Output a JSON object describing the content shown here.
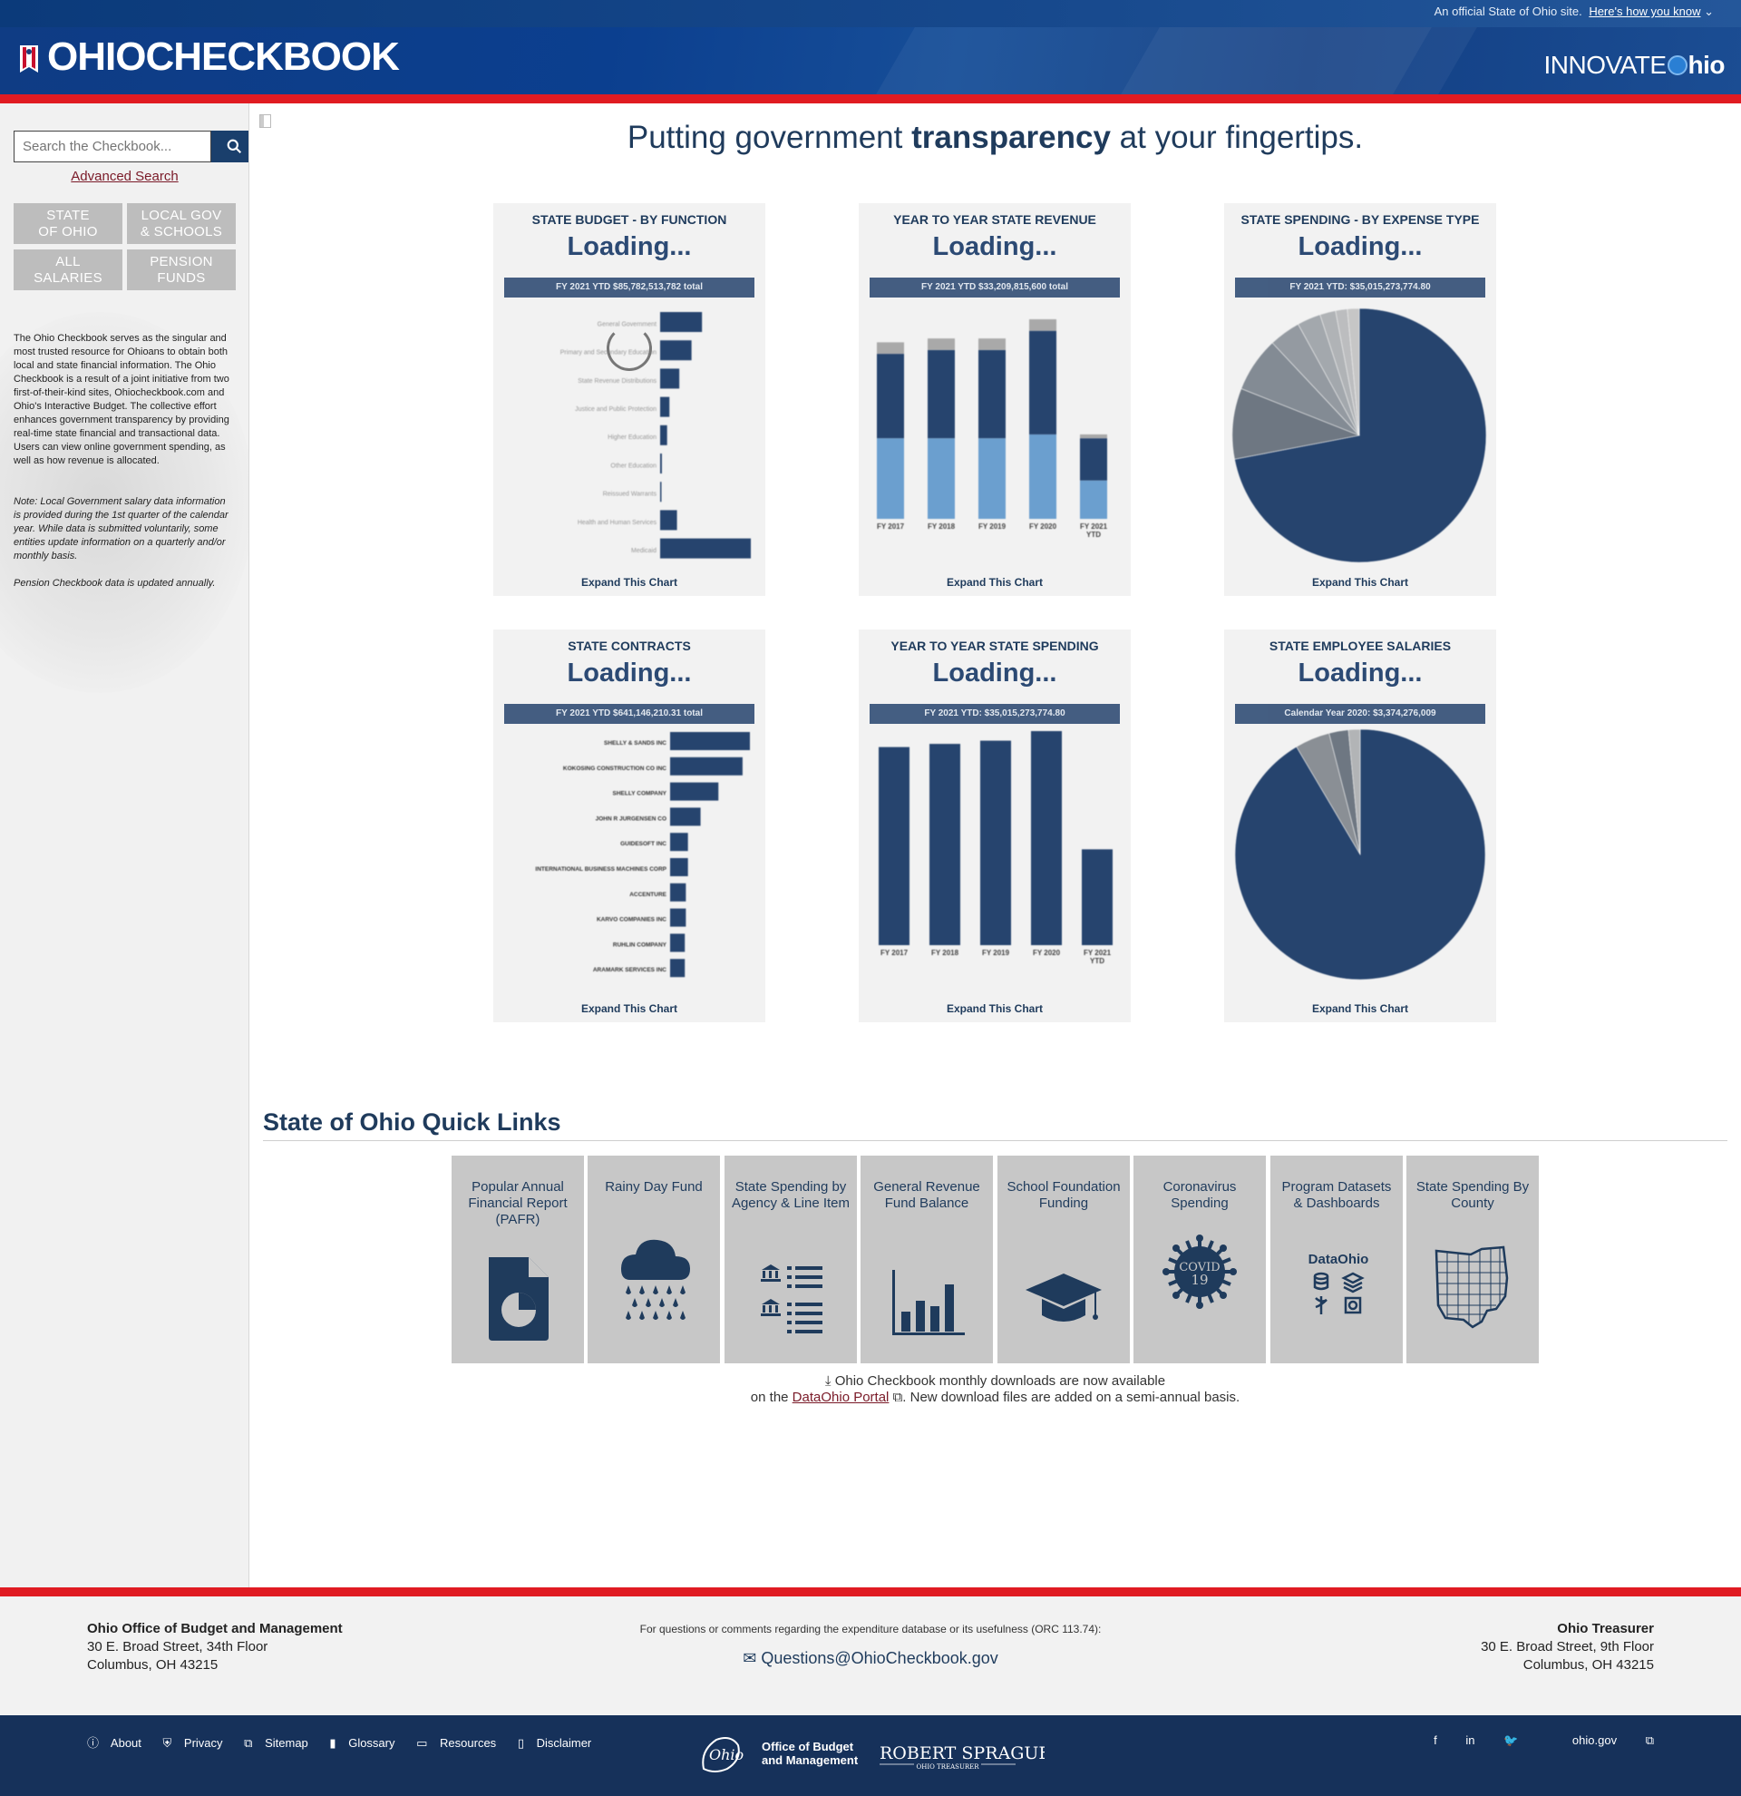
{
  "header": {
    "official_text": "An official State of Ohio site.",
    "how_link": "Here's how you know",
    "site_title": "OHIOCHECKBOOK",
    "innovate_thin": "INNOVATE",
    "innovate_bold": "hio"
  },
  "sidebar": {
    "search_placeholder": "Search the Checkbook...",
    "advanced_search": "Advanced Search",
    "nav": [
      {
        "line1": "STATE",
        "line2": "OF OHIO"
      },
      {
        "line1": "LOCAL GOV",
        "line2": "& SCHOOLS"
      },
      {
        "line1": "ALL",
        "line2": "SALARIES"
      },
      {
        "line1": "PENSION",
        "line2": "FUNDS"
      }
    ],
    "description": "The Ohio Checkbook serves as the singular and most trusted resource for Ohioans to obtain both local and state financial information. The Ohio Checkbook is a result of a joint initiative from two first-of-their-kind sites, Ohiocheckbook.com and Ohio's Interactive Budget. The collective effort enhances government transparency by providing real-time state financial and transactional data. Users can view online government spending, as well as how revenue is allocated.",
    "note": "Note: Local Government salary data information is provided during the 1st quarter of the calendar year. While data is submitted voluntarily, some entities update information on a quarterly and/or monthly basis.",
    "pension_note": "Pension Checkbook data is updated annually."
  },
  "main": {
    "tagline_pre": "Putting government ",
    "tagline_bold": "transparency",
    "tagline_post": " at your fingertips.",
    "loading": "Loading...",
    "expand": "Expand This Chart",
    "cards": [
      {
        "title": "STATE BUDGET - BY FUNCTION",
        "total": "FY 2021 YTD $85,782,513,782 total"
      },
      {
        "title": "YEAR TO YEAR STATE REVENUE",
        "total": "FY 2021 YTD $33,209,815,600 total"
      },
      {
        "title": "STATE SPENDING - BY EXPENSE TYPE",
        "total": "FY 2021 YTD: $35,015,273,774.80"
      },
      {
        "title": "STATE CONTRACTS",
        "total": "FY 2021 YTD $641,146,210.31 total"
      },
      {
        "title": "YEAR TO YEAR STATE SPENDING",
        "total": "FY 2021 YTD: $35,015,273,774.80"
      },
      {
        "title": "STATE EMPLOYEE SALARIES",
        "total": "Calendar Year 2020: $3,374,276,009"
      }
    ]
  },
  "chart_data": [
    {
      "type": "bar",
      "title": "STATE BUDGET - BY FUNCTION",
      "orientation": "horizontal",
      "categories": [
        "General Government",
        "Primary and Secondary Education",
        "State Revenue Distributions",
        "Justice and Public Protection",
        "Higher Education",
        "Other Education",
        "Reissued Warrants",
        "Health and Human Services",
        "Medicaid"
      ],
      "values": [
        7.2,
        5.4,
        3.3,
        1.6,
        1.2,
        0.3,
        0.1,
        2.9,
        15.6
      ]
    },
    {
      "type": "bar",
      "title": "YEAR TO YEAR STATE REVENUE",
      "stacked": true,
      "categories": [
        "FY 2017",
        "FY 2018",
        "FY 2019",
        "FY 2020",
        "FY 2021 YTD"
      ],
      "series": [
        {
          "values": [
            21,
            21,
            21,
            22,
            10
          ]
        },
        {
          "values": [
            22,
            23,
            23,
            27,
            11
          ]
        },
        {
          "values": [
            3,
            3,
            3,
            3,
            1
          ]
        }
      ]
    },
    {
      "type": "pie",
      "title": "STATE SPENDING - BY EXPENSE TYPE",
      "values": [
        72,
        9,
        7,
        4,
        3,
        2,
        1.5,
        1.5
      ]
    },
    {
      "type": "bar",
      "title": "STATE CONTRACTS",
      "orientation": "horizontal",
      "categories": [
        "SHELLY & SANDS INC",
        "KOKOSING CONSTRUCTION CO INC",
        "SHELLY COMPANY",
        "JOHN R JURGENSEN CO",
        "GUIDESOFT INC",
        "INTERNATIONAL BUSINESS MACHINES CORP",
        "ACCENTURE",
        "KARVO COMPANIES INC",
        "RUHLIN COMPANY",
        "ARAMARK SERVICES INC"
      ],
      "values": [
        76,
        69,
        46,
        29,
        17,
        17,
        15,
        15,
        14,
        14
      ]
    },
    {
      "type": "bar",
      "title": "YEAR TO YEAR STATE SPENDING",
      "categories": [
        "FY 2017",
        "FY 2018",
        "FY 2019",
        "FY 2020",
        "FY 2021 YTD"
      ],
      "values": [
        62,
        63,
        64,
        67,
        30
      ]
    },
    {
      "type": "pie",
      "title": "STATE EMPLOYEE SALARIES",
      "values": [
        91.5,
        4.5,
        2.5,
        1.5
      ]
    }
  ],
  "quick_links": {
    "title": "State of Ohio Quick Links",
    "tiles": [
      {
        "label": "Popular Annual Financial Report (PAFR)",
        "icon": "report-pie-icon"
      },
      {
        "label": "Rainy Day Fund",
        "icon": "rain-cloud-icon"
      },
      {
        "label": "State Spending by Agency & Line Item",
        "icon": "agency-list-icon"
      },
      {
        "label": "General Revenue Fund Balance",
        "icon": "bar-chart-icon"
      },
      {
        "label": "School Foundation Funding",
        "icon": "graduation-cap-icon"
      },
      {
        "label": "Coronavirus Spending",
        "icon": "covid-icon",
        "badge_line1": "COVID",
        "badge_line2": "19"
      },
      {
        "label": "Program Datasets & Dashboards",
        "icon": "dataohio-icon",
        "brand": "DataOhio"
      },
      {
        "label": "State Spending By County",
        "icon": "ohio-county-map-icon"
      }
    ],
    "downloads_line1": "Ohio Checkbook monthly downloads are now available",
    "downloads_pre": "on the ",
    "downloads_link": "DataOhio Portal",
    "downloads_post": ". New download files are added on a semi-annual basis."
  },
  "footer": {
    "left_org": "Ohio Office of Budget and Management",
    "left_street": "30 E. Broad Street, 34th Floor",
    "left_city": "Columbus, OH 43215",
    "question": "For questions or comments regarding the expenditure database or its usefulness (ORC 113.74):",
    "email": "Questions@OhioCheckbook.gov",
    "right_org": "Ohio Treasurer",
    "right_street": "30 E. Broad Street, 9th Floor",
    "right_city": "Columbus, OH 43215",
    "links": [
      "About",
      "Privacy",
      "Sitemap",
      "Glossary",
      "Resources",
      "Disclaimer"
    ],
    "obm_line1": "Office of Budget",
    "obm_line2": "and Management",
    "treasurer_name": "ROBERT SPRAGUE",
    "treasurer_title": "OHIO TREASURER",
    "ohio_gov": "ohio.gov"
  },
  "colors": {
    "navy": "#1f3b5c",
    "bar": "#26446e",
    "light_bar": "#6b9fcf",
    "red": "#e01b22"
  }
}
